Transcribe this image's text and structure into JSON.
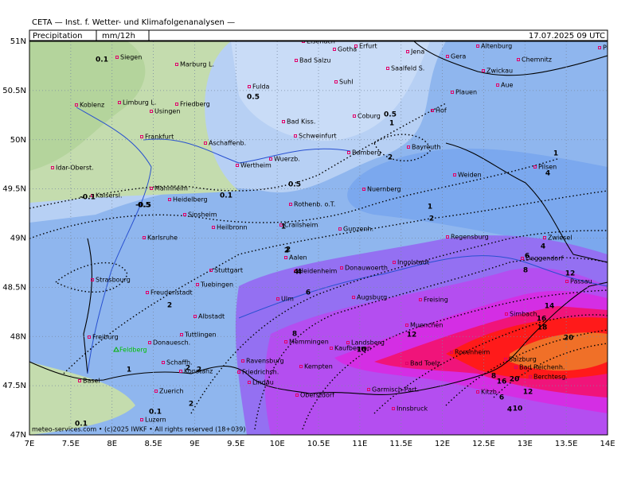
{
  "header": {
    "institute": "CETA — Inst. f. Wetter- und Klimafolgenanalysen —",
    "product": "Precipitation",
    "unit": "mm/12h",
    "datetime": "17.07.2025 09 UTC"
  },
  "axes": {
    "lat_labels": [
      "51N",
      "50.5N",
      "50N",
      "49.5N",
      "49N",
      "48.5N",
      "48N",
      "47.5N",
      "47N"
    ],
    "lon_labels": [
      "7E",
      "7.5E",
      "8E",
      "8.5E",
      "9E",
      "9.5E",
      "10E",
      "10.5E",
      "11E",
      "11.5E",
      "12E",
      "12.5E",
      "13E",
      "13.5E",
      "14E"
    ]
  },
  "footer": "meteo-services.com • (c)2025 IWKF • All rights reserved (18+039)",
  "cities": [
    "Siegen",
    "Marburg L.",
    "Koblenz",
    "Limburg L.",
    "Usingen",
    "Friedberg",
    "Frankfurt",
    "Aschaffenb.",
    "Wertheim",
    "Wuerzb.",
    "Idar-Oberst.",
    "Kaisersl.",
    "Mannheim",
    "Heidelberg",
    "Sinsheim",
    "Heilbronn",
    "Karlsruhe",
    "Stuttgart",
    "Tuebingen",
    "Strasbourg",
    "Freudenstadt",
    "Albstadt",
    "Freiburg",
    "Donauesch.",
    "Tuttlingen",
    "Feldberg",
    "Konstanz",
    "Schaffh.",
    "Zuerich",
    "Basel",
    "Luzern",
    "Fulda",
    "Bad Salzu",
    "Eisenach",
    "Gotha",
    "Erfurt",
    "Jena",
    "Suhl",
    "Coburg",
    "Bad Kiss.",
    "Schweinfurt",
    "Bamberg",
    "Bayreuth",
    "Hof",
    "Saalfeld S.",
    "Gera",
    "Altenburg",
    "Zwickau",
    "Chemnitz",
    "Aue",
    "Plauen",
    "Pirna",
    "Weiden",
    "Pilsen",
    "Nuernberg",
    "Rothenb. o.T.",
    "Crailsheim",
    "Gunzenh.",
    "Aalen",
    "Heidenheim",
    "Donauwoerth",
    "Ingolstadt",
    "Regensburg",
    "Zwiesel",
    "Deggendorf",
    "Passau",
    "Ulm",
    "Augsburg",
    "Freising",
    "Muenchen",
    "Memmingen",
    "Kaufbeuren",
    "Landsberg",
    "Ravensburg",
    "Friedrichsh.",
    "Lindau",
    "Kempten",
    "Oberstdorf",
    "Garmisch-Part.",
    "Innsbruck",
    "Bad Toelz",
    "Rosenheim",
    "Simbach",
    "Salzburg",
    "Bad Reichenh.",
    "Berchtesg.",
    "Kitzb."
  ],
  "contour_labels": [
    "0.1",
    "0.5",
    "0.5",
    "1",
    "0.1",
    "0.5",
    "-0.1",
    "-0.5",
    "0.5",
    "1",
    "2",
    "2",
    "1",
    "2",
    "4",
    "2",
    "2",
    "4",
    "1",
    "2",
    "4",
    "6",
    "8",
    "10",
    "12",
    "14",
    "16",
    "18",
    "20",
    "12",
    "8",
    "6",
    "4",
    "1",
    "2",
    "0.1",
    "0.1",
    "2",
    "4",
    "6",
    "8",
    "10",
    "12",
    "16",
    "20"
  ]
}
